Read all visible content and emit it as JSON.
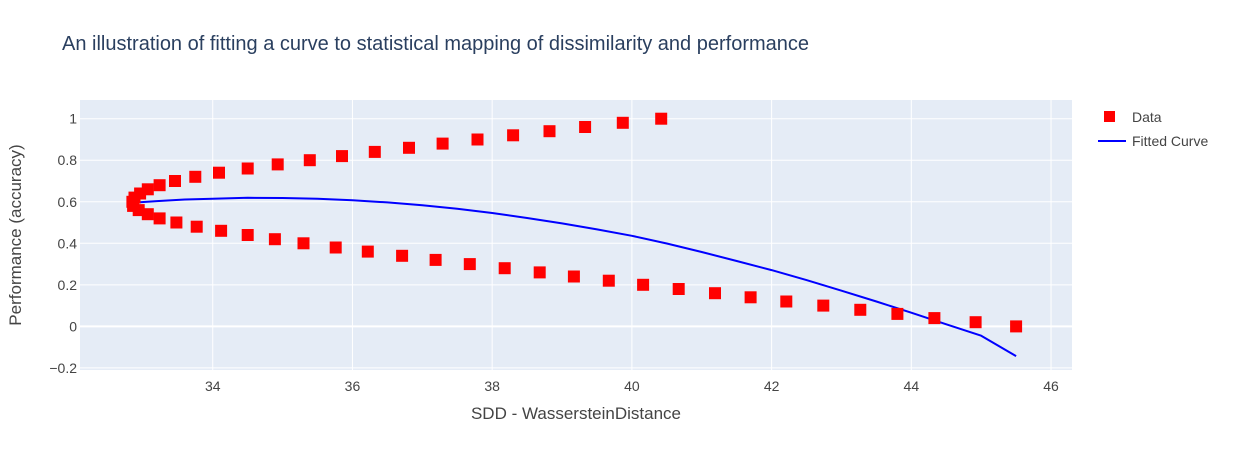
{
  "chart_data": {
    "type": "scatter",
    "title": "An illustration of fitting a curve to statistical mapping of dissimilarity and performance",
    "xlabel": "SDD - WassersteinDistance",
    "ylabel": "Performance (accuracy)",
    "xlim": [
      32.1,
      46.3
    ],
    "ylim": [
      -0.21,
      1.09
    ],
    "xticks": [
      {
        "value": 34,
        "label": "34"
      },
      {
        "value": 36,
        "label": "36"
      },
      {
        "value": 38,
        "label": "38"
      },
      {
        "value": 40,
        "label": "40"
      },
      {
        "value": 42,
        "label": "42"
      },
      {
        "value": 44,
        "label": "44"
      },
      {
        "value": 46,
        "label": "46"
      }
    ],
    "yticks": [
      {
        "value": -0.2,
        "label": "−0.2"
      },
      {
        "value": 0,
        "label": "0"
      },
      {
        "value": 0.2,
        "label": "0.2"
      },
      {
        "value": 0.4,
        "label": "0.4"
      },
      {
        "value": 0.6,
        "label": "0.6"
      },
      {
        "value": 0.8,
        "label": "0.8"
      },
      {
        "value": 1,
        "label": "1"
      }
    ],
    "grid": true,
    "legend_position": "top-right",
    "colors": {
      "plot_bg": "#e5ecf6",
      "grid": "#ffffff",
      "data": "#ff0000",
      "fit": "#0000ff",
      "text": "#444444",
      "title": "#2a3f5f"
    },
    "series": [
      {
        "name": "Data",
        "mode": "markers",
        "marker": "square",
        "x": [
          40.42,
          39.87,
          39.33,
          38.82,
          38.3,
          37.79,
          37.29,
          36.81,
          36.32,
          35.85,
          35.39,
          34.93,
          34.5,
          34.09,
          33.75,
          33.46,
          33.24,
          33.07,
          32.96,
          32.88,
          32.85,
          32.86,
          32.94,
          33.07,
          33.24,
          33.48,
          33.77,
          34.12,
          34.5,
          34.89,
          35.3,
          35.76,
          36.22,
          36.71,
          37.19,
          37.68,
          38.18,
          38.68,
          39.17,
          39.67,
          40.16,
          40.67,
          41.19,
          41.7,
          42.21,
          42.74,
          43.27,
          43.8,
          44.33,
          44.92,
          45.5
        ],
        "y": [
          1.0,
          0.98,
          0.96,
          0.94,
          0.92,
          0.9,
          0.88,
          0.86,
          0.84,
          0.82,
          0.8,
          0.78,
          0.76,
          0.74,
          0.72,
          0.7,
          0.68,
          0.66,
          0.64,
          0.62,
          0.6,
          0.58,
          0.56,
          0.54,
          0.52,
          0.5,
          0.48,
          0.46,
          0.44,
          0.42,
          0.4,
          0.38,
          0.36,
          0.34,
          0.32,
          0.3,
          0.28,
          0.26,
          0.24,
          0.22,
          0.2,
          0.18,
          0.16,
          0.14,
          0.12,
          0.1,
          0.08,
          0.06,
          0.04,
          0.02,
          0.0
        ]
      },
      {
        "name": "Fitted Curve",
        "mode": "lines",
        "x": [
          32.85,
          33.2,
          33.6,
          34.0,
          34.5,
          35.0,
          35.5,
          36.0,
          36.5,
          37.0,
          37.5,
          38.0,
          38.5,
          39.0,
          39.5,
          40.0,
          40.5,
          41.0,
          41.5,
          42.0,
          42.5,
          43.0,
          43.5,
          44.0,
          44.5,
          45.0,
          45.5
        ],
        "y": [
          0.595,
          0.603,
          0.611,
          0.615,
          0.619,
          0.618,
          0.615,
          0.607,
          0.597,
          0.583,
          0.566,
          0.546,
          0.522,
          0.496,
          0.467,
          0.436,
          0.399,
          0.358,
          0.315,
          0.271,
          0.223,
          0.172,
          0.12,
          0.066,
          0.01,
          -0.045,
          -0.143
        ]
      }
    ]
  }
}
